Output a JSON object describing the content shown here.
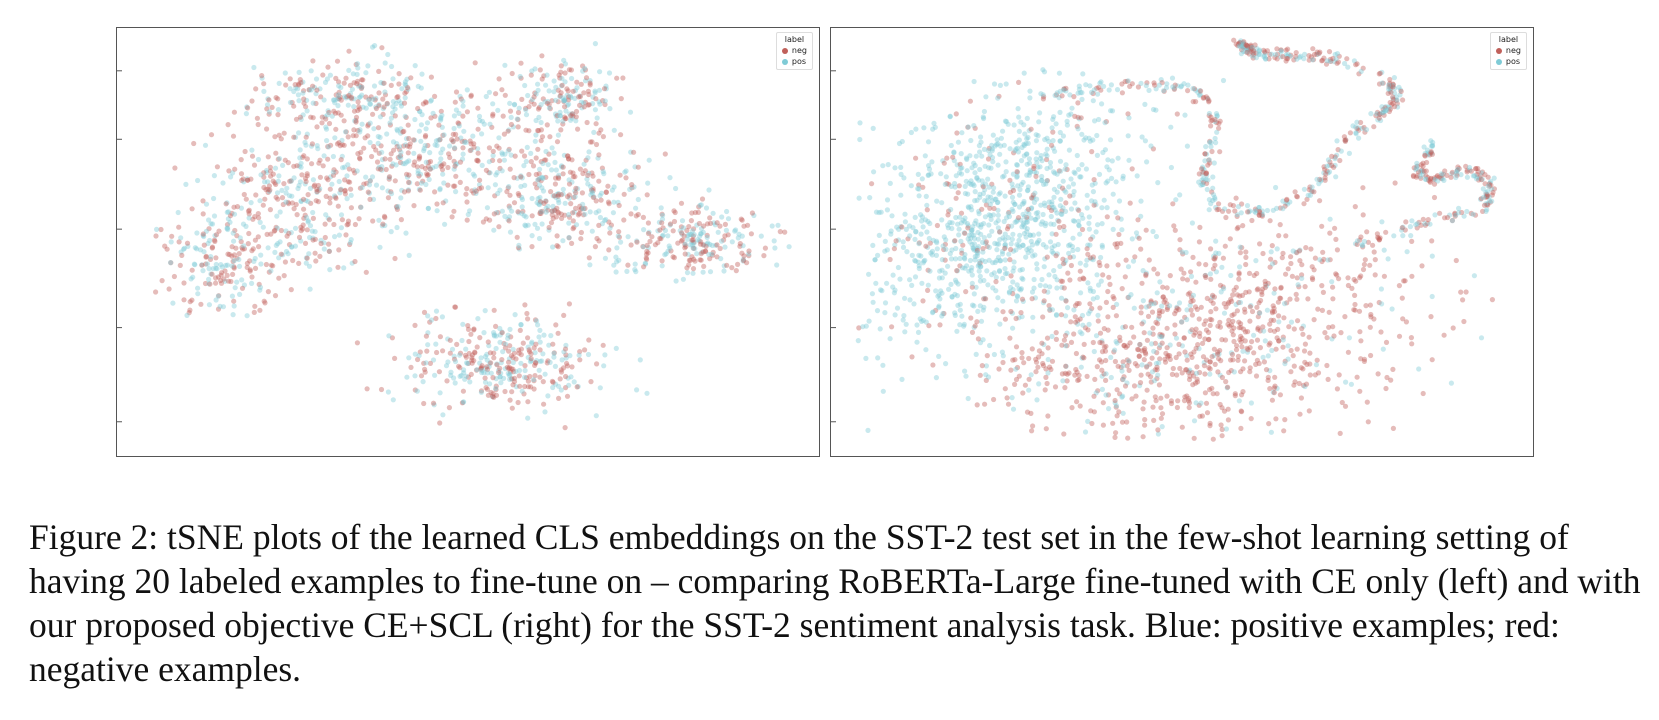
{
  "figure": {
    "caption": "Figure 2: tSNE plots of the learned CLS embeddings on the SST-2 test set in the few-shot learning setting of having 20 labeled examples to fine-tune on – comparing RoBERTa-Large fine-tuned with CE only (left) and with our proposed objective CE+SCL (right) for the SST-2 sentiment analysis task. Blue: positive examples; red: negative examples."
  },
  "chart_data": [
    {
      "type": "scatter",
      "panel": "left",
      "title": "",
      "xlabel": "",
      "ylabel": "",
      "legend": {
        "title": "label",
        "placement": "top-right",
        "entries": [
          "neg",
          "pos"
        ]
      },
      "colors": {
        "neg": "#c0605a",
        "pos": "#7fcbd6"
      },
      "x_ticks": 5,
      "y_ticks": 5,
      "grid": false,
      "series": [
        {
          "name": "neg",
          "distribution": "intermixed with pos across the whole embedding cloud"
        },
        {
          "name": "pos",
          "distribution": "intermixed with neg across the whole embedding cloud"
        }
      ]
    },
    {
      "type": "scatter",
      "panel": "right",
      "title": "",
      "xlabel": "",
      "ylabel": "",
      "legend": {
        "title": "label",
        "placement": "top-right",
        "entries": [
          "neg",
          "pos"
        ]
      },
      "colors": {
        "neg": "#c0605a",
        "pos": "#7fcbd6"
      },
      "x_ticks": 5,
      "y_ticks": 5,
      "grid": false,
      "series": [
        {
          "name": "neg",
          "distribution": "concentrated in the lower cluster"
        },
        {
          "name": "pos",
          "distribution": "concentrated in the upper-left cluster"
        }
      ]
    }
  ]
}
